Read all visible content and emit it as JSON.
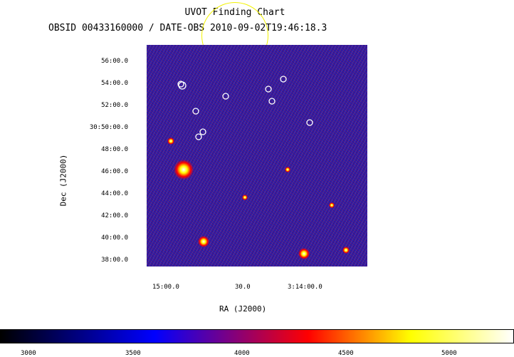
{
  "header": {
    "title": "UVOT Finding Chart",
    "subtitle": "OBSID 00433160000 / DATE-OBS 2010-09-02T19:46:18.3"
  },
  "axes": {
    "xlabel": "RA (J2000)",
    "ylabel": "Dec (J2000)",
    "x_ticks": [
      "15:00.0",
      "30.0",
      "3:14:00.0"
    ],
    "y_ticks": [
      "56:00.0",
      "54:00.0",
      "52:00.0",
      "30:50:00.0",
      "48:00.0",
      "46:00.0",
      "44:00.0",
      "42:00.0",
      "40:00.0",
      "38:00.0"
    ]
  },
  "colorbar": {
    "ticks": [
      "3000",
      "3500",
      "4000",
      "4500",
      "5000"
    ],
    "colors": [
      "#000000",
      "#0000ff",
      "#ff0000",
      "#ffff00",
      "#ffffff"
    ]
  },
  "overlay_colors": {
    "marker": "#ffffff",
    "field_of_view": "#f2f200"
  }
}
